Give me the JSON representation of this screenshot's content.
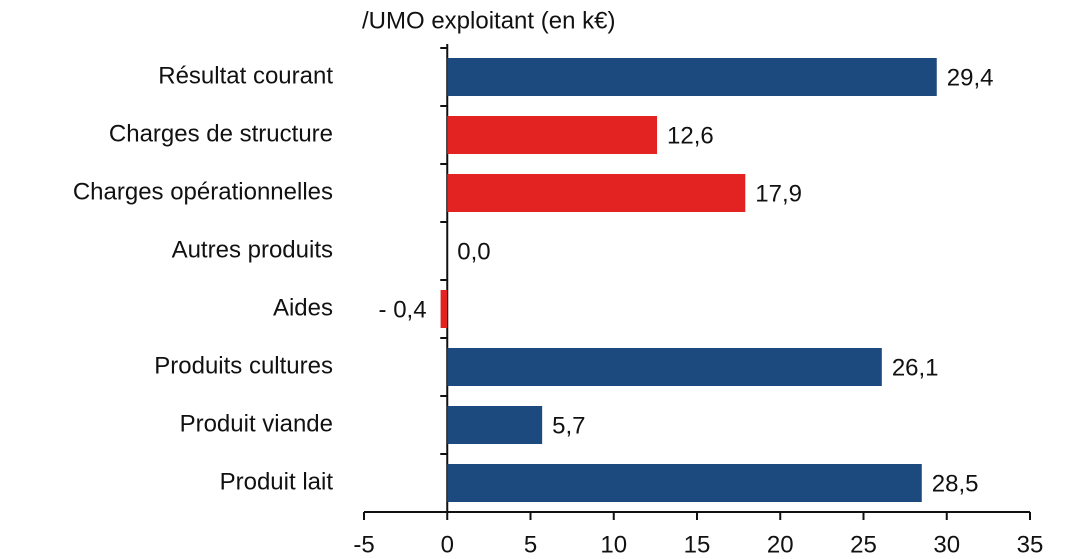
{
  "chart_data": {
    "type": "barh",
    "title": "/UMO exploitant (en k€)",
    "categories": [
      "Résultat courant",
      "Charges de structure",
      "Charges opérationnelles",
      "Autres produits",
      "Aides",
      "Produits cultures",
      "Produit viande",
      "Produit lait"
    ],
    "values": [
      29.4,
      12.6,
      17.9,
      0.0,
      -0.4,
      26.1,
      5.7,
      28.5
    ],
    "value_labels": [
      "29,4",
      "12,6",
      "17,9",
      "0,0",
      "- 0,4",
      "26,1",
      "5,7",
      "28,5"
    ],
    "colors": [
      "#1d4a7e",
      "#e32222",
      "#e32222",
      "#1d4a7e",
      "#e32222",
      "#1d4a7e",
      "#1d4a7e",
      "#1d4a7e"
    ],
    "xlim": [
      -5,
      35
    ],
    "xticks": [
      -5,
      0,
      5,
      10,
      15,
      20,
      25,
      30,
      35
    ]
  }
}
